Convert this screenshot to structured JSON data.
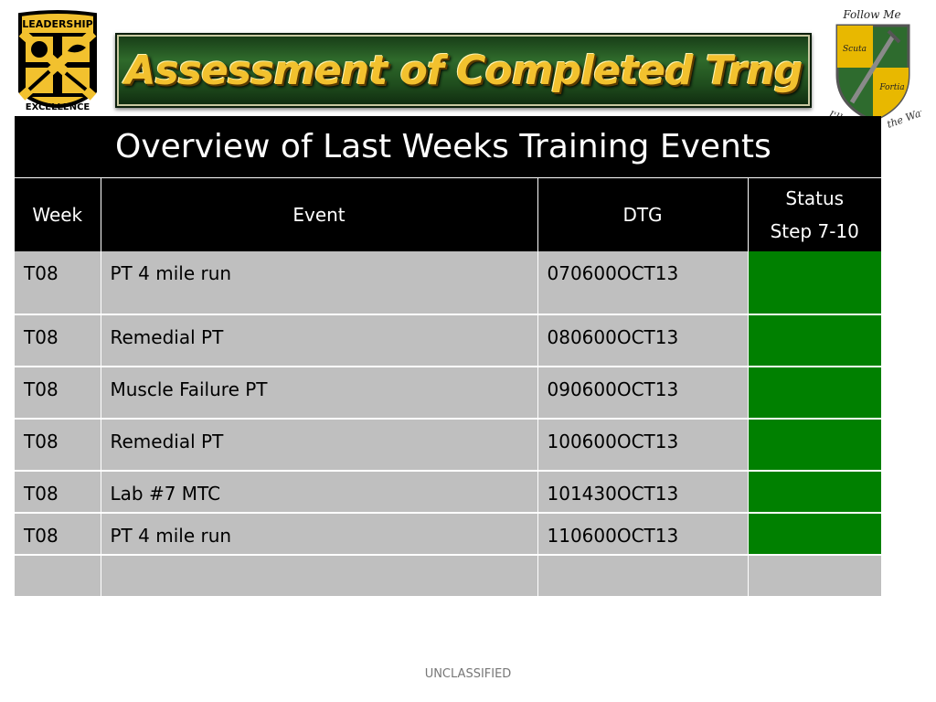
{
  "header": {
    "banner_title": "Assessment of Completed Trng",
    "left_logo": {
      "icon": "rotc-leadership-excellence-shield-icon",
      "top_text": "LEADERSHIP",
      "bottom_text": "EXCELLENCE",
      "colors": {
        "gold": "#f2c12e",
        "black": "#000000"
      }
    },
    "right_logo": {
      "icon": "follow-me-scuta-fortia-crest-icon",
      "top_text": "Follow Me",
      "left_text": "Scuta",
      "right_text": "Fortia",
      "side_text_left": "I'll",
      "side_text_right": "the Way",
      "colors": {
        "gold": "#e8b800",
        "green": "#2e6b2e"
      }
    }
  },
  "table": {
    "title": "Overview of Last Weeks Training Events",
    "columns": {
      "week": "Week",
      "event": "Event",
      "dtg": "DTG",
      "status_line1": "Status",
      "status_line2": "Step 7-10"
    },
    "rows": [
      {
        "week": "T08",
        "event": "PT 4 mile run",
        "dtg": "070600OCT13",
        "status": "green"
      },
      {
        "week": "T08",
        "event": "Remedial PT",
        "dtg": "080600OCT13",
        "status": "green"
      },
      {
        "week": "T08",
        "event": "Muscle Failure PT",
        "dtg": "090600OCT13",
        "status": "green"
      },
      {
        "week": "T08",
        "event": "Remedial PT",
        "dtg": "100600OCT13",
        "status": "green"
      },
      {
        "week": "T08",
        "event": "Lab #7 MTC",
        "dtg": "101430OCT13",
        "status": "green"
      },
      {
        "week": "T08",
        "event": "PT 4 mile run",
        "dtg": "110600OCT13",
        "status": "green"
      },
      {
        "week": "",
        "event": "",
        "dtg": "",
        "status": ""
      }
    ],
    "colors": {
      "header_bg": "#000000",
      "cell_bg": "#bfbfbf",
      "status_green": "#008000"
    }
  },
  "footer": {
    "classification": "UNCLASSIFIED"
  }
}
